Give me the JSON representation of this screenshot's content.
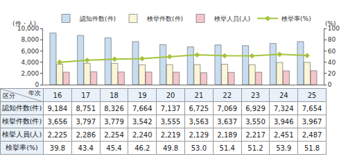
{
  "chart_data": {
    "type": "bar",
    "categories": [
      "16",
      "17",
      "18",
      "19",
      "20",
      "21",
      "22",
      "23",
      "24",
      "25"
    ],
    "xlabel": "年次",
    "ylabel": "(件・人)",
    "y2label": "(%)",
    "annotations": [
      "区分"
    ],
    "series": [
      {
        "name": "認知件数(件)",
        "type": "bar",
        "color": "#c9ddf1",
        "values": [
          9184,
          8751,
          8326,
          7664,
          7137,
          6725,
          7069,
          6929,
          7324,
          7654
        ],
        "value_labels": [
          "9,184",
          "8,751",
          "8,326",
          "7,664",
          "7,137",
          "6,725",
          "7,069",
          "6,929",
          "7,324",
          "7,654"
        ]
      },
      {
        "name": "検挙件数(件)",
        "type": "bar",
        "color": "#fbf6d6",
        "values": [
          3656,
          3797,
          3779,
          3542,
          3555,
          3563,
          3637,
          3550,
          3946,
          3967
        ],
        "value_labels": [
          "3,656",
          "3,797",
          "3,779",
          "3,542",
          "3,555",
          "3,563",
          "3,637",
          "3,550",
          "3,946",
          "3,967"
        ]
      },
      {
        "name": "検挙人員(人)",
        "type": "bar",
        "color": "#f4c6cb",
        "values": [
          2225,
          2286,
          2254,
          2240,
          2219,
          2129,
          2189,
          2217,
          2451,
          2487
        ],
        "value_labels": [
          "2,225",
          "2,286",
          "2,254",
          "2,240",
          "2,219",
          "2,129",
          "2,189",
          "2,217",
          "2,451",
          "2,487"
        ]
      },
      {
        "name": "検挙率(%)",
        "type": "line",
        "axis": "y2",
        "color": "#a3c43a",
        "marker": "diamond",
        "values": [
          39.8,
          43.4,
          45.4,
          46.2,
          49.8,
          53.0,
          51.4,
          51.2,
          53.9,
          51.8
        ],
        "value_labels": [
          "39.8",
          "43.4",
          "45.4",
          "46.2",
          "49.8",
          "53.0",
          "51.4",
          "51.2",
          "53.9",
          "51.8"
        ]
      }
    ],
    "ylim": [
      0,
      10000
    ],
    "yticks": [
      0,
      {
        "value": 2000,
        "label": "2,000"
      },
      {
        "value": 4000,
        "label": "4,000"
      },
      {
        "value": 6000,
        "label": "6,000"
      },
      {
        "value": 8000,
        "label": "8,000"
      },
      {
        "value": 10000,
        "label": "10,000"
      }
    ],
    "y2lim": [
      0,
      100
    ],
    "y2ticks": [
      0,
      20,
      40,
      60,
      80,
      100
    ],
    "legend": "top",
    "grid": false
  }
}
